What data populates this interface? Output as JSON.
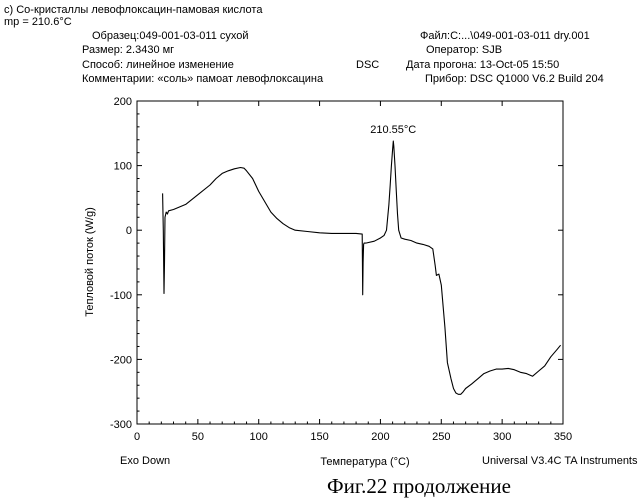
{
  "header": {
    "subtitle": "c) Со-кристаллы левофлоксацин-памовая кислота",
    "mp": "mp = 210.6°C",
    "sample": "Образец:049-001-03-011 сухой",
    "size": "Размер: 2.3430 мг",
    "method": "Способ: линейное изменение",
    "comments": "Комментарии: «соль» памоат левофлоксацина",
    "technique": "DSC",
    "file": "Файл:C:...\\049-001-03-011 dry.001",
    "operator": "Оператор: SJB",
    "run_date": "Дата прогона: 13-Oct-05 15:50",
    "instrument": "Прибор: DSC Q1000 V6.2 Build 204"
  },
  "footer": {
    "exo": "Exo Down",
    "software": "Universal V3.4C TA Instruments"
  },
  "caption": "Фиг.22 продолжение",
  "chart_data": {
    "type": "line",
    "title": "",
    "xlabel": "Температура (°C)",
    "ylabel": "Тепловой поток (W/g)",
    "xlim": [
      0,
      350
    ],
    "ylim": [
      -300,
      200
    ],
    "xticks": [
      0,
      50,
      100,
      150,
      200,
      250,
      300,
      350
    ],
    "yticks": [
      -300,
      -200,
      -100,
      0,
      100,
      200
    ],
    "annotations": [
      {
        "text": "210.55°C",
        "x": 210.55,
        "y": 138
      }
    ],
    "series": [
      {
        "name": "Heat Flow",
        "x": [
          21,
          21.6,
          22.2,
          22.6,
          23,
          24,
          25,
          26,
          30,
          40,
          50,
          60,
          65,
          70,
          75,
          80,
          85,
          88,
          90,
          95,
          100,
          110,
          115,
          120,
          125,
          130,
          140,
          150,
          160,
          170,
          180,
          185,
          185.4,
          185.8,
          186.2,
          186.6,
          188,
          195,
          200,
          203,
          205,
          207,
          208,
          209,
          210,
          210.55,
          211,
          212,
          213,
          214,
          215,
          217,
          220,
          225,
          230,
          235,
          240,
          243,
          245,
          246,
          248,
          250,
          253,
          255,
          258,
          260,
          262,
          264,
          266,
          268,
          270,
          275,
          280,
          285,
          290,
          295,
          300,
          305,
          310,
          315,
          320,
          325,
          330,
          335,
          340,
          345,
          348
        ],
        "y": [
          57,
          0,
          -98,
          -50,
          20,
          28,
          25,
          30,
          32,
          40,
          55,
          70,
          80,
          88,
          92,
          95,
          97,
          96,
          92,
          80,
          60,
          28,
          18,
          10,
          4,
          0,
          -2,
          -4,
          -5,
          -5,
          -5,
          -6,
          -100,
          -50,
          -22,
          -20,
          -20,
          -17,
          -12,
          -8,
          0,
          40,
          70,
          100,
          125,
          138,
          130,
          100,
          60,
          25,
          0,
          -12,
          -14,
          -16,
          -20,
          -22,
          -25,
          -29,
          -55,
          -70,
          -68,
          -85,
          -150,
          -205,
          -230,
          -245,
          -252,
          -254,
          -254,
          -250,
          -245,
          -238,
          -230,
          -222,
          -218,
          -215,
          -215,
          -214,
          -216,
          -220,
          -222,
          -226,
          -218,
          -210,
          -196,
          -185,
          -178
        ]
      }
    ]
  }
}
